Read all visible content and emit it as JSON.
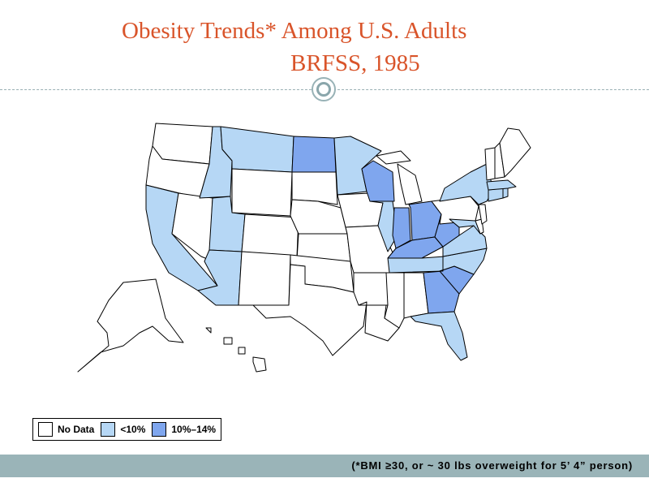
{
  "title": {
    "line1": "Obesity Trends* Among U.S. Adults",
    "line2": "BRFSS, 1985"
  },
  "legend": {
    "items": [
      {
        "label": "No Data",
        "color": "#ffffff"
      },
      {
        "label": "<10%",
        "color": "#b6d7f5"
      },
      {
        "label": "10%–14%",
        "color": "#7fa6ee"
      }
    ]
  },
  "footnote": "(*BMI ≥30, or ~ 30 lbs overweight for 5’ 4” person)",
  "colors": {
    "title": "#d9542a",
    "footer_band": "#9ab4b8",
    "no_data": "#ffffff",
    "under_10": "#b6d7f5",
    "10_to_14": "#7fa6ee"
  },
  "states": {
    "no_data": [
      "WA",
      "OR",
      "NV",
      "WY",
      "CO",
      "NM",
      "TX",
      "OK",
      "KS",
      "NE",
      "SD",
      "IA",
      "MO",
      "AR",
      "LA",
      "MS",
      "AL",
      "MI",
      "PA",
      "NJ",
      "VT",
      "NH",
      "ME",
      "DE",
      "AK",
      "HI"
    ],
    "under_10": [
      "CA",
      "ID",
      "MT",
      "UT",
      "AZ",
      "MN",
      "IL",
      "NY",
      "MA",
      "CT",
      "RI",
      "MD",
      "VA",
      "NC",
      "TN",
      "FL"
    ],
    "10_to_14": [
      "ND",
      "WI",
      "IN",
      "OH",
      "KY",
      "WV",
      "GA",
      "SC"
    ]
  }
}
